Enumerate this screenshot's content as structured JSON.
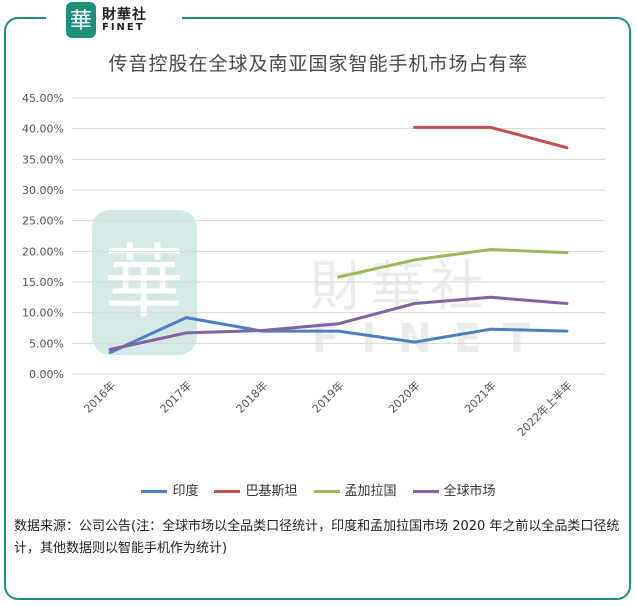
{
  "logo": {
    "name": "財華社",
    "sub": "FINET",
    "seal_char": "華"
  },
  "watermark": {
    "name": "財華社",
    "sub": "FINET"
  },
  "chart_data": {
    "type": "line",
    "title": "传音控股在全球及南亚国家智能手机市场占有率",
    "categories": [
      "2016年",
      "2017年",
      "2018年",
      "2019年",
      "2020年",
      "2021年",
      "2022年上半年"
    ],
    "y_ticks": [
      "0.00%",
      "5.00%",
      "10.00%",
      "15.00%",
      "20.00%",
      "25.00%",
      "30.00%",
      "35.00%",
      "40.00%",
      "45.00%"
    ],
    "ylim": [
      0,
      45
    ],
    "grid": true,
    "legend_position": "bottom",
    "series": [
      {
        "name": "印度",
        "color": "#4e7fc0",
        "values": [
          3.5,
          9.2,
          7.0,
          7.0,
          5.2,
          7.3,
          7.0
        ]
      },
      {
        "name": "巴基斯坦",
        "color": "#c0504d",
        "values": [
          null,
          null,
          null,
          null,
          40.2,
          40.2,
          36.9
        ]
      },
      {
        "name": "孟加拉国",
        "color": "#9bbb59",
        "values": [
          null,
          null,
          null,
          15.8,
          18.6,
          20.3,
          19.8
        ]
      },
      {
        "name": "全球市场",
        "color": "#8064a2",
        "values": [
          4.0,
          6.7,
          7.1,
          8.2,
          11.5,
          12.5,
          11.5
        ]
      }
    ]
  },
  "source_note": "数据来源：公司公告(注：全球市场以全品类口径统计，印度和孟加拉国市场 2020 年之前以全品类口径统计，其他数据则以智能手机作为统计)"
}
